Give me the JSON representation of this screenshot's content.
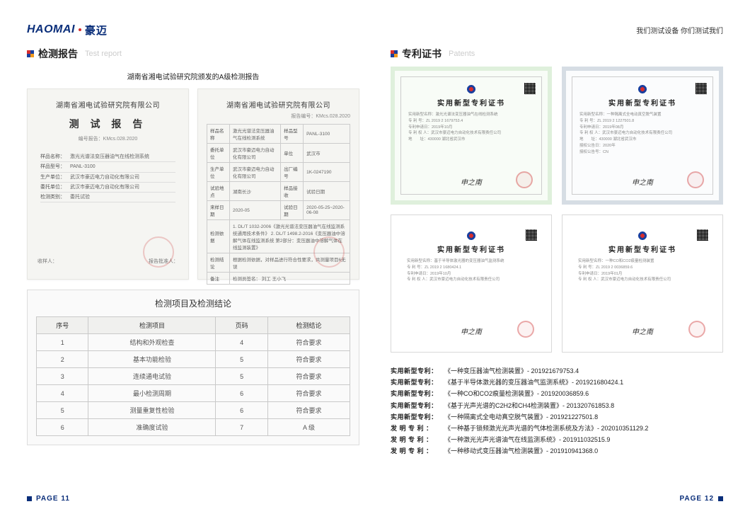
{
  "brand": {
    "name_en": "HAOMAI",
    "name_cn": "豪迈",
    "slogan": "我们测试设备 你们测试我们"
  },
  "left": {
    "section_cn": "检测报告",
    "section_en": "Test report",
    "subtitle": "湖南省湘电试验研究院颁发的A级检测报告",
    "doc_a": {
      "inst": "湖南省湘电试验研究院有限公司",
      "title": "测 试 报 告",
      "code": "编号报告：KMcs.028.2020",
      "fields": [
        {
          "l": "样品名称：",
          "v": "激光光谱法变压器油气在线检测系统"
        },
        {
          "l": "样品型号：",
          "v": "PANL-3100"
        },
        {
          "l": "生产单位：",
          "v": "武汉市豪迈电力自动化有限公司"
        },
        {
          "l": "委托单位：",
          "v": "武汉市豪迈电力自动化有限公司"
        },
        {
          "l": "检测类别：",
          "v": "委托试验"
        }
      ],
      "footer_l": "收样人：",
      "footer_r": "报告批准人："
    },
    "doc_b": {
      "inst": "湖南省湘电试验研究院有限公司",
      "code": "报告编号：KMcs.028.2020",
      "rows": [
        [
          "样品名称",
          "激光光谱法变压器油气在线检测系统",
          "样品型号",
          "PANL-3100"
        ],
        [
          "委托单位",
          "武汉市豪迈电力自动化有限公司",
          "单位",
          "武汉市"
        ],
        [
          "生产单位",
          "武汉市豪迈电力自动化有限公司",
          "出厂编号",
          "1K-0247190"
        ],
        [
          "试验地点",
          "湖南长沙",
          "样品接收",
          "试验日期"
        ],
        [
          "来样日期",
          "2020-05",
          "试验日期",
          "2020-05-25~2020-06-08"
        ],
        [
          "检测依据",
          "",
          "1. DL/T 1032-2006《激光光谱法变压器油气在线监测系统通用技术条件》\n2. DL/T 1498.2-2016《变压器油中溶解气体在线监测系统 第2部分：变压器油中溶解气体在线监测装置》",
          ""
        ],
        [
          "检测结论",
          "",
          "根据检测依据，对样品进行符合性要求，共测量项目6无误",
          ""
        ],
        [
          "备注",
          "",
          "检测员签名：   刘工 王小飞",
          ""
        ]
      ]
    },
    "result_title": "检测项目及检测结论",
    "result_head": [
      "序号",
      "检测项目",
      "页码",
      "检测结论"
    ],
    "result_rows": [
      [
        "1",
        "结构和外观检查",
        "4",
        "符合要求"
      ],
      [
        "2",
        "基本功能检验",
        "5",
        "符合要求"
      ],
      [
        "3",
        "连续通电试验",
        "5",
        "符合要求"
      ],
      [
        "4",
        "最小检测周期",
        "6",
        "符合要求"
      ],
      [
        "5",
        "测量重复性检验",
        "6",
        "符合要求"
      ],
      [
        "6",
        "准确度试验",
        "7",
        "A 级"
      ]
    ]
  },
  "right": {
    "section_cn": "专利证书",
    "section_en": "Patents",
    "card_title": "实用新型专利证书",
    "card_sign": "申之南",
    "patent_list": [
      {
        "type": "实用新型专利：",
        "text": "《一种变压器油气检测装置》- 201921679753.4"
      },
      {
        "type": "实用新型专利：",
        "text": "《基于半导体激光器的变压器油气监测系统》- 201921680424.1"
      },
      {
        "type": "实用新型专利：",
        "text": "《一种CO和CO2痕量检测装置》- 201920036859.6"
      },
      {
        "type": "实用新型专利：",
        "text": "《基于光声光谱的C2H2和CH4检测装置》- 201320761853.8"
      },
      {
        "type": "实用新型专利：",
        "text": "《一种隔离式全电动真空脱气装置》- 201921227501.8"
      },
      {
        "type": "发 明 专 利 ：",
        "spaced": true,
        "text": "《一种基于锁频激光光声光谱的气体检测系统及方法》- 202010351129.2"
      },
      {
        "type": "发 明 专 利 ：",
        "spaced": true,
        "text": "《一种激光光声光谱油气在线监测系统》- 201911032515.9"
      },
      {
        "type": "发 明 专 利 ：",
        "spaced": true,
        "text": "《一种移动式变压器油气检测装置》- 201910941368.0"
      }
    ]
  },
  "footer": {
    "left": "PAGE 11",
    "right": "PAGE 12"
  }
}
